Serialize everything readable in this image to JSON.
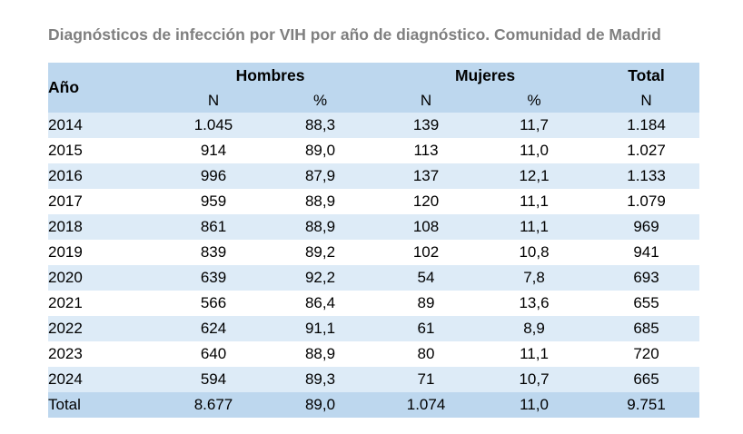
{
  "title": "Diagnósticos de infección por VIH por año de diagnóstico. Comunidad de Madrid",
  "header": {
    "year": "Año",
    "hombres": "Hombres",
    "mujeres": "Mujeres",
    "total": "Total",
    "sub": [
      "N",
      "%",
      "N",
      "%",
      "N"
    ]
  },
  "rows": [
    [
      "2014",
      "1.045",
      "88,3",
      "139",
      "11,7",
      "1.184"
    ],
    [
      "2015",
      "914",
      "89,0",
      "113",
      "11,0",
      "1.027"
    ],
    [
      "2016",
      "996",
      "87,9",
      "137",
      "12,1",
      "1.133"
    ],
    [
      "2017",
      "959",
      "88,9",
      "120",
      "11,1",
      "1.079"
    ],
    [
      "2018",
      "861",
      "88,9",
      "108",
      "11,1",
      "969"
    ],
    [
      "2019",
      "839",
      "89,2",
      "102",
      "10,8",
      "941"
    ],
    [
      "2020",
      "639",
      "92,2",
      "54",
      "7,8",
      "693"
    ],
    [
      "2021",
      "566",
      "86,4",
      "89",
      "13,6",
      "655"
    ],
    [
      "2022",
      "624",
      "91,1",
      "61",
      "8,9",
      "685"
    ],
    [
      "2023",
      "640",
      "88,9",
      "80",
      "11,1",
      "720"
    ],
    [
      "2024",
      "594",
      "89,3",
      "71",
      "10,7",
      "665"
    ]
  ],
  "total_row": [
    "Total",
    "8.677",
    "89,0",
    "1.074",
    "11,0",
    "9.751"
  ],
  "colors": {
    "header_bg": "#bdd7ee",
    "alt_row_bg": "#ddebf7",
    "title_color": "#7f7f7f"
  }
}
